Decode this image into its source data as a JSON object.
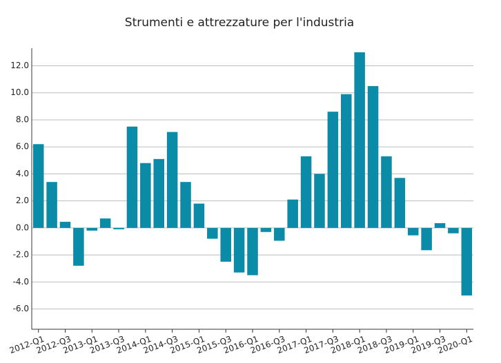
{
  "chart_data": {
    "type": "bar",
    "title": "Strumenti e attrezzature per l'industria",
    "categories": [
      "2012-Q1",
      null,
      "2012-Q3",
      null,
      "2013-Q1",
      null,
      "2013-Q3",
      null,
      "2014-Q1",
      null,
      "2014-Q3",
      null,
      "2015-Q1",
      null,
      "2015-Q3",
      null,
      "2016-Q1",
      null,
      "2016-Q3",
      null,
      "2017-Q1",
      null,
      "2017-Q3",
      null,
      "2018-Q1",
      null,
      "2018-Q3",
      null,
      "2019-Q1",
      null,
      "2019-Q3",
      null,
      "2020-Q1"
    ],
    "values": [
      6.2,
      3.4,
      0.45,
      -2.8,
      -0.2,
      0.7,
      -0.1,
      7.5,
      4.8,
      5.1,
      7.1,
      3.4,
      1.8,
      -0.8,
      -2.5,
      -3.3,
      -3.5,
      -0.3,
      -0.95,
      2.1,
      5.3,
      4.0,
      8.6,
      9.9,
      13.0,
      10.5,
      5.3,
      3.7,
      -0.55,
      -1.65,
      0.35,
      -0.4,
      -5.0
    ],
    "color": "#0a8ca8",
    "ylim": [
      -7.5,
      13.3
    ],
    "yticks": [
      {
        "value": -6,
        "label": "-6.0"
      },
      {
        "value": -4,
        "label": "-4.0"
      },
      {
        "value": -2,
        "label": "-2.0"
      },
      {
        "value": 0,
        "label": "0.0"
      },
      {
        "value": 2,
        "label": "2.0"
      },
      {
        "value": 4,
        "label": "4.0"
      },
      {
        "value": 6,
        "label": "6.0"
      },
      {
        "value": 8,
        "label": "8.0"
      },
      {
        "value": 10,
        "label": "10.0"
      },
      {
        "value": 12,
        "label": "12.0"
      }
    ],
    "grid": true
  }
}
